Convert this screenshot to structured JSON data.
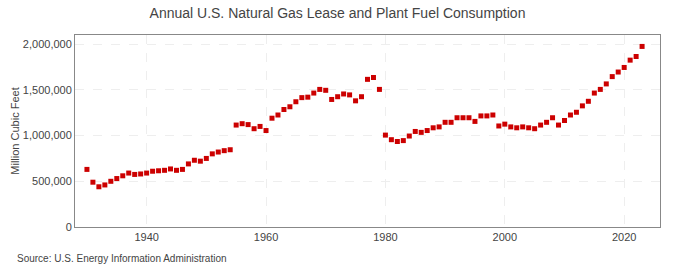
{
  "chart_data": {
    "type": "scatter",
    "title": "Annual U.S. Natural Gas Lease and Plant Fuel Consumption",
    "ylabel": "Million Cubic Feet",
    "annotations": [
      "Source: U.S. Energy Information Administration"
    ],
    "color": "#cc0000",
    "marker": "square",
    "grid": true,
    "x": [
      1930,
      1931,
      1932,
      1933,
      1934,
      1935,
      1936,
      1937,
      1938,
      1939,
      1940,
      1941,
      1942,
      1943,
      1944,
      1945,
      1946,
      1947,
      1948,
      1949,
      1950,
      1951,
      1952,
      1953,
      1954,
      1955,
      1956,
      1957,
      1958,
      1959,
      1960,
      1961,
      1962,
      1963,
      1964,
      1965,
      1966,
      1967,
      1968,
      1969,
      1970,
      1971,
      1972,
      1973,
      1974,
      1975,
      1976,
      1977,
      1978,
      1979,
      1980,
      1981,
      1982,
      1983,
      1984,
      1985,
      1986,
      1987,
      1988,
      1989,
      1990,
      1991,
      1992,
      1993,
      1994,
      1995,
      1996,
      1997,
      1998,
      1999,
      2000,
      2001,
      2002,
      2003,
      2004,
      2005,
      2006,
      2007,
      2008,
      2009,
      2010,
      2011,
      2012,
      2013,
      2014,
      2015,
      2016,
      2017,
      2018,
      2019,
      2020,
      2021,
      2022,
      2023
    ],
    "values": [
      630000,
      490000,
      440000,
      460000,
      500000,
      530000,
      560000,
      590000,
      575000,
      580000,
      590000,
      610000,
      615000,
      620000,
      635000,
      620000,
      630000,
      690000,
      730000,
      720000,
      750000,
      800000,
      820000,
      835000,
      845000,
      1115000,
      1130000,
      1120000,
      1075000,
      1100000,
      1055000,
      1190000,
      1225000,
      1285000,
      1315000,
      1370000,
      1415000,
      1420000,
      1465000,
      1505000,
      1495000,
      1395000,
      1425000,
      1455000,
      1445000,
      1380000,
      1425000,
      1615000,
      1635000,
      1505000,
      1005000,
      955000,
      935000,
      945000,
      995000,
      1045000,
      1035000,
      1055000,
      1085000,
      1095000,
      1145000,
      1145000,
      1195000,
      1195000,
      1195000,
      1155000,
      1215000,
      1215000,
      1225000,
      1105000,
      1125000,
      1095000,
      1085000,
      1095000,
      1085000,
      1075000,
      1115000,
      1145000,
      1195000,
      1115000,
      1165000,
      1225000,
      1255000,
      1325000,
      1375000,
      1465000,
      1505000,
      1565000,
      1645000,
      1695000,
      1745000,
      1825000,
      1865000,
      1975000
    ],
    "xlim": [
      1928,
      2026
    ],
    "xticks": [
      1940,
      1960,
      1980,
      2000,
      2020
    ],
    "ylim": [
      0,
      2100000
    ],
    "yticks": [
      0,
      {
        "value": 500000,
        "label": "500,000"
      },
      {
        "value": 1000000,
        "label": "1,000,000"
      },
      {
        "value": 1500000,
        "label": "1,500,000"
      },
      {
        "value": 2000000,
        "label": "2,000,000"
      }
    ]
  }
}
